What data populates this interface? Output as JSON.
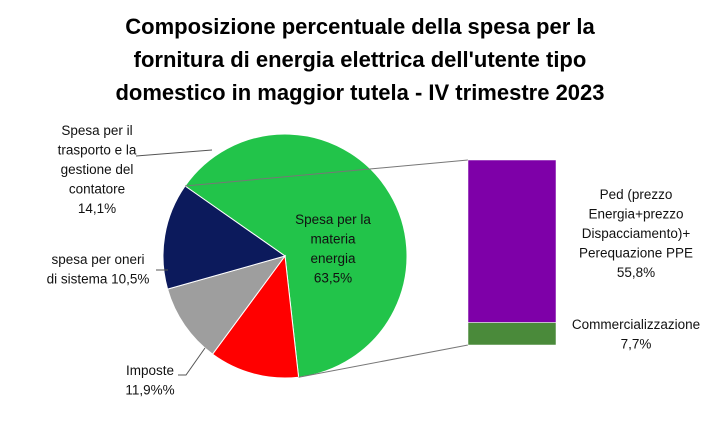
{
  "chart_data": {
    "type": "pie",
    "title_lines": [
      "Composizione percentuale della spesa per la",
      "fornitura di energia elettrica dell'utente tipo",
      "domestico in maggior tutela - IV trimestre 2023"
    ],
    "pie": {
      "slices": [
        {
          "label_lines": [
            "Spesa per la",
            "materia",
            "energia",
            "63,5%"
          ],
          "value": 63.5,
          "color": "#22c44a"
        },
        {
          "label_lines": [
            "Imposte",
            "11,9%%"
          ],
          "value": 11.9,
          "color": "#ff0000"
        },
        {
          "label_lines": [
            "spesa per oneri",
            "di sistema 10,5%"
          ],
          "value": 10.5,
          "color": "#9e9e9e"
        },
        {
          "label_lines": [
            "Spesa per il",
            "trasporto e la",
            "gestione del",
            "contatore",
            "14,1%"
          ],
          "value": 14.1,
          "color": "#0c1a5c"
        }
      ]
    },
    "breakdown_bar": {
      "parent": "Spesa per la materia energia",
      "segments": [
        {
          "label_lines": [
            "Ped (prezzo",
            "Energia+prezzo",
            "Dispacciamento)+",
            "Perequazione PPE",
            "55,8%"
          ],
          "value": 55.8,
          "color": "#7e00a8"
        },
        {
          "label_lines": [
            "Commercializzazione",
            "7,7%"
          ],
          "value": 7.7,
          "color": "#4a8a3a"
        }
      ]
    }
  }
}
